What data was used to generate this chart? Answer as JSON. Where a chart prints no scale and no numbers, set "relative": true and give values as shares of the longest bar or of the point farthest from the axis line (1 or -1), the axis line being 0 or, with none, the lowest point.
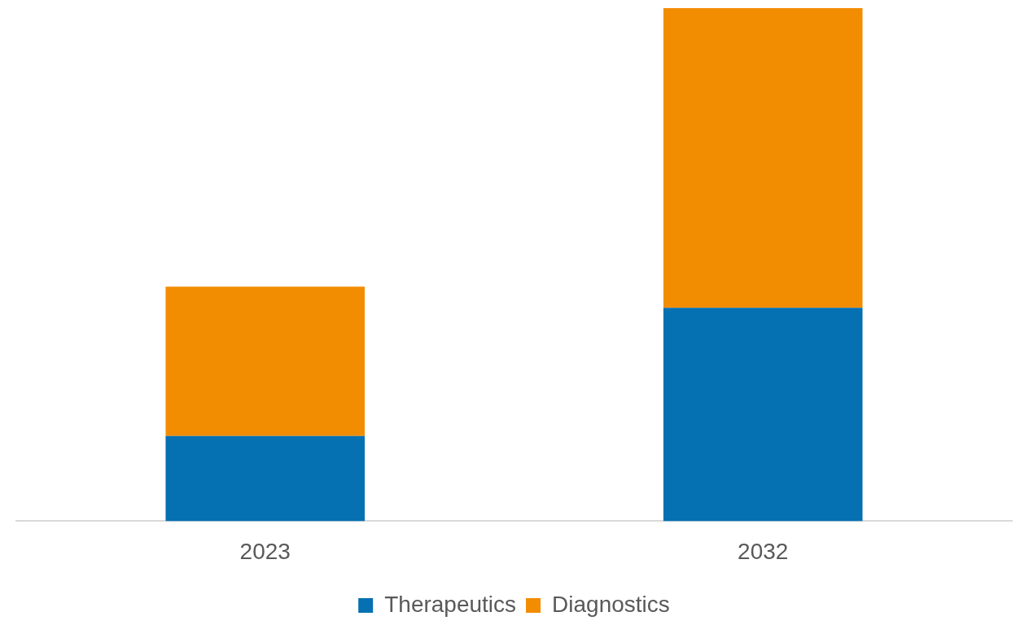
{
  "chart_data": {
    "type": "bar",
    "stacked": true,
    "relative": true,
    "categories": [
      "2023",
      "2032"
    ],
    "series": [
      {
        "name": "Therapeutics",
        "color": "#0570b2",
        "values": [
          0.166,
          0.416
        ]
      },
      {
        "name": "Diagnostics",
        "color": "#f28c00",
        "values": [
          0.291,
          0.584
        ]
      }
    ],
    "legend": "bottom"
  }
}
